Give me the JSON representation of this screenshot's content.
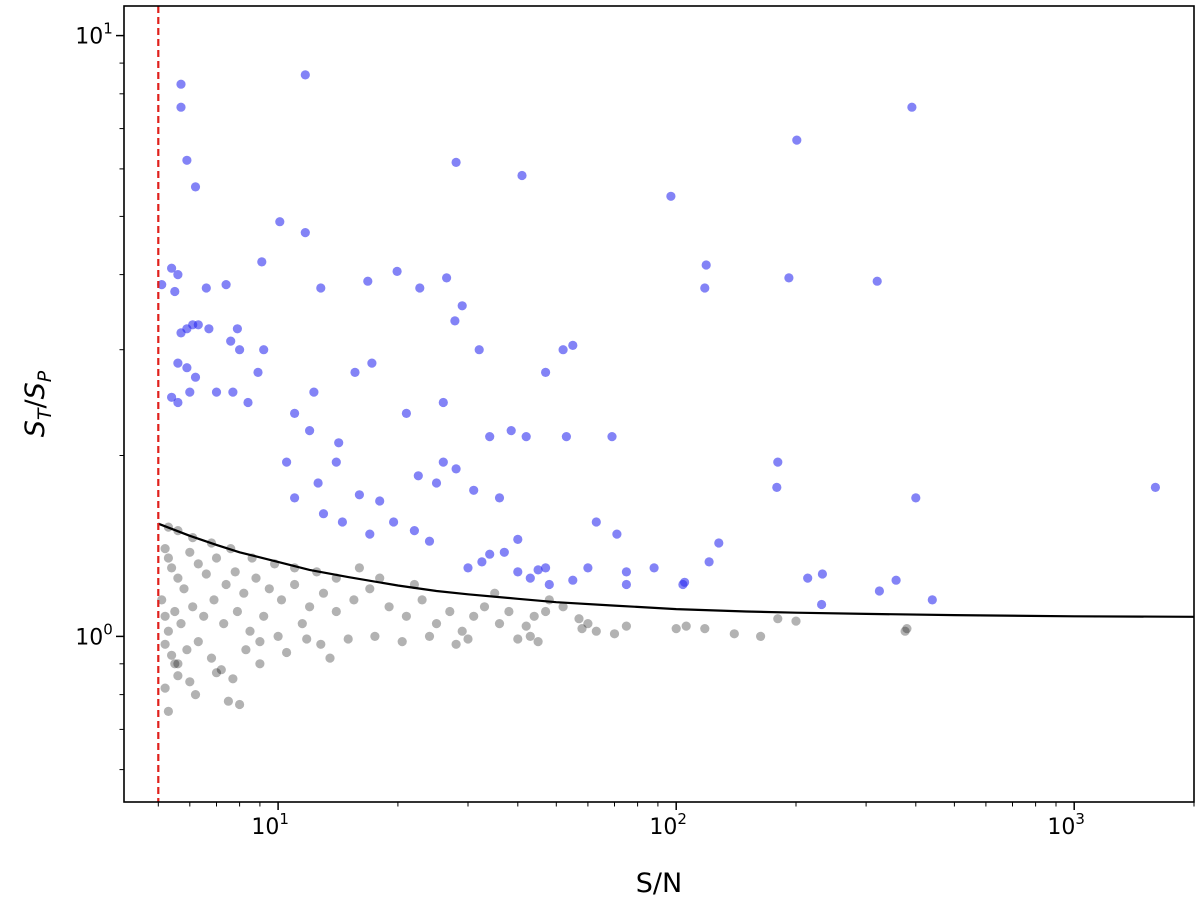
{
  "chart_data": {
    "type": "scatter",
    "title": "",
    "xlabel": "S/N",
    "ylabel": {
      "main": "S",
      "sub1": "T",
      "sep": "/",
      "main2": "S",
      "sub2": "P"
    },
    "xscale": "log",
    "yscale": "log",
    "xlim": [
      4.1,
      2000
    ],
    "ylim": [
      0.53,
      11.2
    ],
    "x_ticks": [
      {
        "value": 10,
        "base": "10",
        "exp": "1"
      },
      {
        "value": 100,
        "base": "10",
        "exp": "2"
      },
      {
        "value": 1000,
        "base": "10",
        "exp": "3"
      }
    ],
    "y_ticks": [
      {
        "value": 1,
        "base": "10",
        "exp": "0"
      },
      {
        "value": 10,
        "base": "10",
        "exp": "1"
      }
    ],
    "grid": false,
    "colors": {
      "resolved": "#2a2af0",
      "unresolved": "#000000",
      "threshold_line": "#e0201c",
      "envelope": "#000000"
    },
    "threshold": {
      "x": 5.0,
      "style": "dashed"
    },
    "envelope_curve": {
      "x": [
        5.0,
        6,
        7,
        8,
        10,
        12,
        15,
        20,
        25,
        30,
        40,
        50,
        70,
        100,
        150,
        200,
        300,
        500,
        1000,
        2000
      ],
      "y": [
        1.54,
        1.47,
        1.42,
        1.38,
        1.33,
        1.29,
        1.255,
        1.215,
        1.19,
        1.175,
        1.155,
        1.14,
        1.125,
        1.11,
        1.1,
        1.095,
        1.09,
        1.085,
        1.08,
        1.078
      ]
    },
    "series": [
      {
        "points": [
          [
            5.7,
            8.3
          ],
          [
            5.7,
            7.6
          ],
          [
            5.9,
            6.2
          ],
          [
            6.2,
            5.6
          ],
          [
            11.7,
            8.6
          ],
          [
            10.1,
            4.9
          ],
          [
            11.7,
            4.7
          ],
          [
            5.4,
            4.1
          ],
          [
            5.6,
            4.0
          ],
          [
            5.1,
            3.85
          ],
          [
            5.5,
            3.75
          ],
          [
            6.6,
            3.8
          ],
          [
            7.4,
            3.85
          ],
          [
            9.1,
            4.2
          ],
          [
            6.3,
            3.3
          ],
          [
            5.7,
            3.2
          ],
          [
            5.9,
            3.25
          ],
          [
            6.1,
            3.3
          ],
          [
            6.7,
            3.25
          ],
          [
            7.6,
            3.1
          ],
          [
            7.9,
            3.25
          ],
          [
            8.0,
            3.0
          ],
          [
            8.9,
            2.75
          ],
          [
            9.2,
            3.0
          ],
          [
            5.6,
            2.85
          ],
          [
            5.9,
            2.8
          ],
          [
            6.2,
            2.7
          ],
          [
            6.0,
            2.55
          ],
          [
            5.4,
            2.5
          ],
          [
            5.6,
            2.45
          ],
          [
            7.0,
            2.55
          ],
          [
            7.7,
            2.55
          ],
          [
            8.4,
            2.45
          ],
          [
            11.0,
            2.35
          ],
          [
            12.3,
            2.55
          ],
          [
            12.8,
            3.8
          ],
          [
            16.8,
            3.9
          ],
          [
            19.9,
            4.05
          ],
          [
            22.7,
            3.8
          ],
          [
            26.5,
            3.95
          ],
          [
            29.0,
            3.55
          ],
          [
            27.8,
            3.35
          ],
          [
            32.0,
            3.0
          ],
          [
            28.0,
            6.15
          ],
          [
            41.0,
            5.85
          ],
          [
            15.6,
            2.75
          ],
          [
            17.2,
            2.85
          ],
          [
            21.0,
            2.35
          ],
          [
            26.0,
            2.45
          ],
          [
            47.0,
            2.75
          ],
          [
            52.0,
            3.0
          ],
          [
            55.0,
            3.05
          ],
          [
            34.0,
            2.15
          ],
          [
            38.5,
            2.2
          ],
          [
            42.0,
            2.15
          ],
          [
            53.0,
            2.15
          ],
          [
            69.0,
            2.15
          ],
          [
            26.0,
            1.95
          ],
          [
            28.0,
            1.9
          ],
          [
            22.5,
            1.85
          ],
          [
            25.0,
            1.8
          ],
          [
            31.0,
            1.75
          ],
          [
            36.0,
            1.7
          ],
          [
            97.0,
            5.4
          ],
          [
            119.0,
            4.15
          ],
          [
            118.0,
            3.8
          ],
          [
            192.0,
            3.95
          ],
          [
            201.0,
            6.7
          ],
          [
            320.0,
            3.9
          ],
          [
            391.0,
            7.6
          ],
          [
            180.0,
            1.95
          ],
          [
            179.0,
            1.77
          ],
          [
            400.0,
            1.7
          ],
          [
            1600.0,
            1.77
          ],
          [
            63.0,
            1.55
          ],
          [
            71.0,
            1.48
          ],
          [
            128.0,
            1.43
          ],
          [
            121.0,
            1.33
          ],
          [
            60.0,
            1.3
          ],
          [
            75.0,
            1.28
          ],
          [
            88.0,
            1.3
          ],
          [
            105.0,
            1.23
          ],
          [
            75.0,
            1.22
          ],
          [
            104.0,
            1.22
          ],
          [
            233.0,
            1.27
          ],
          [
            214.0,
            1.25
          ],
          [
            357.0,
            1.24
          ],
          [
            324.0,
            1.19
          ],
          [
            440.0,
            1.15
          ],
          [
            232.0,
            1.13
          ],
          [
            45.0,
            1.29
          ],
          [
            47.0,
            1.3
          ],
          [
            40.0,
            1.28
          ],
          [
            43.0,
            1.25
          ],
          [
            48.0,
            1.22
          ],
          [
            55.0,
            1.24
          ],
          [
            37.0,
            1.38
          ],
          [
            40.0,
            1.45
          ],
          [
            34.0,
            1.37
          ],
          [
            30.0,
            1.3
          ],
          [
            32.5,
            1.33
          ],
          [
            12.6,
            1.8
          ],
          [
            14.0,
            1.95
          ],
          [
            16.0,
            1.72
          ],
          [
            18.0,
            1.68
          ],
          [
            19.5,
            1.55
          ],
          [
            22.0,
            1.5
          ],
          [
            24.0,
            1.44
          ],
          [
            14.5,
            1.55
          ],
          [
            13.0,
            1.6
          ],
          [
            17.0,
            1.48
          ],
          [
            11.0,
            1.7
          ],
          [
            10.5,
            1.95
          ],
          [
            12.0,
            2.2
          ],
          [
            14.2,
            2.1
          ]
        ]
      },
      {
        "points": [
          [
            5.2,
            1.4
          ],
          [
            5.3,
            1.35
          ],
          [
            5.4,
            1.3
          ],
          [
            5.6,
            1.25
          ],
          [
            5.8,
            1.2
          ],
          [
            6.0,
            1.38
          ],
          [
            6.3,
            1.32
          ],
          [
            6.6,
            1.27
          ],
          [
            7.0,
            1.35
          ],
          [
            7.4,
            1.22
          ],
          [
            7.8,
            1.28
          ],
          [
            8.2,
            1.18
          ],
          [
            8.8,
            1.25
          ],
          [
            9.5,
            1.2
          ],
          [
            10.2,
            1.15
          ],
          [
            11.0,
            1.22
          ],
          [
            12.0,
            1.12
          ],
          [
            13.0,
            1.18
          ],
          [
            14.0,
            1.1
          ],
          [
            15.5,
            1.15
          ],
          [
            17.0,
            1.2
          ],
          [
            5.1,
            1.15
          ],
          [
            5.2,
            1.08
          ],
          [
            5.3,
            1.02
          ],
          [
            5.5,
            1.1
          ],
          [
            5.7,
            1.05
          ],
          [
            6.1,
            1.12
          ],
          [
            6.5,
            1.08
          ],
          [
            6.9,
            1.15
          ],
          [
            7.3,
            1.05
          ],
          [
            7.9,
            1.1
          ],
          [
            8.5,
            1.02
          ],
          [
            9.2,
            1.08
          ],
          [
            10.0,
            1.0
          ],
          [
            11.5,
            1.05
          ],
          [
            5.2,
            0.97
          ],
          [
            5.4,
            0.93
          ],
          [
            5.6,
            0.9
          ],
          [
            5.9,
            0.95
          ],
          [
            6.3,
            0.98
          ],
          [
            6.8,
            0.92
          ],
          [
            7.2,
            0.88
          ],
          [
            7.7,
            0.85
          ],
          [
            8.3,
            0.95
          ],
          [
            9.0,
            0.9
          ],
          [
            10.5,
            0.94
          ],
          [
            13.5,
            0.92
          ],
          [
            5.2,
            0.82
          ],
          [
            5.6,
            0.86
          ],
          [
            6.0,
            0.84
          ],
          [
            7.0,
            0.87
          ],
          [
            5.3,
            0.75
          ],
          [
            6.2,
            0.8
          ],
          [
            7.5,
            0.78
          ],
          [
            8.0,
            0.77
          ],
          [
            5.5,
            0.9
          ],
          [
            19.0,
            1.12
          ],
          [
            21.0,
            1.08
          ],
          [
            23.0,
            1.15
          ],
          [
            25.0,
            1.05
          ],
          [
            27.0,
            1.1
          ],
          [
            29.0,
            1.02
          ],
          [
            31.0,
            1.08
          ],
          [
            33.0,
            1.12
          ],
          [
            36.0,
            1.05
          ],
          [
            38.0,
            1.1
          ],
          [
            40.0,
            0.99
          ],
          [
            42.0,
            1.04
          ],
          [
            44.0,
            1.08
          ],
          [
            47.0,
            1.1
          ],
          [
            58.0,
            1.03
          ],
          [
            60.0,
            1.05
          ],
          [
            63.0,
            1.02
          ],
          [
            70.0,
            1.01
          ],
          [
            75.0,
            1.04
          ],
          [
            100.0,
            1.03
          ],
          [
            106.0,
            1.04
          ],
          [
            118.0,
            1.03
          ],
          [
            140.0,
            1.01
          ],
          [
            163.0,
            1.0
          ],
          [
            180.0,
            1.07
          ],
          [
            200.0,
            1.06
          ],
          [
            376.0,
            1.02
          ],
          [
            380.0,
            1.03
          ],
          [
            57.0,
            1.07
          ],
          [
            52.0,
            1.12
          ],
          [
            48.0,
            1.15
          ],
          [
            35.0,
            1.18
          ],
          [
            22.0,
            1.22
          ],
          [
            18.0,
            1.25
          ],
          [
            16.0,
            1.3
          ],
          [
            14.0,
            1.25
          ],
          [
            12.5,
            1.28
          ],
          [
            11.0,
            1.3
          ],
          [
            9.8,
            1.32
          ],
          [
            8.6,
            1.35
          ],
          [
            7.6,
            1.4
          ],
          [
            6.8,
            1.43
          ],
          [
            6.1,
            1.46
          ],
          [
            5.6,
            1.5
          ],
          [
            5.3,
            1.52
          ],
          [
            9.0,
            0.98
          ],
          [
            11.8,
            0.99
          ],
          [
            12.8,
            0.97
          ],
          [
            15.0,
            0.99
          ],
          [
            17.5,
            1.0
          ],
          [
            20.5,
            0.98
          ],
          [
            24.0,
            1.0
          ],
          [
            28.0,
            0.97
          ],
          [
            30.0,
            0.99
          ],
          [
            43.0,
            1.0
          ],
          [
            45.0,
            0.98
          ]
        ]
      }
    ]
  }
}
